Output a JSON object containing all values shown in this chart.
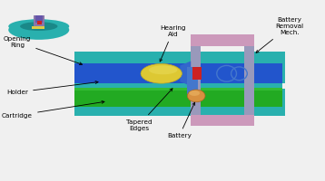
{
  "bg_color": "#f0f0f0",
  "labels": {
    "opening_ring": "Opening\nRing",
    "holder": "Holder",
    "cartridge": "Cartridge",
    "tapered_edges": "Tapered\nEdges",
    "battery": "Battery",
    "hearing_aid": "Hearing\nAid",
    "battery_removal": "Battery\nRemoval\nMech."
  },
  "colors": {
    "teal": "#29b0ae",
    "teal_dark": "#1a8888",
    "blue": "#2255cc",
    "blue_mid": "#3366cc",
    "blue_light": "#4477cc",
    "green": "#22aa22",
    "green_light": "#33bb33",
    "yellow": "#ddc833",
    "yellow_dark": "#bbaa22",
    "orange": "#d89040",
    "red": "#cc2222",
    "gray": "#9999bb",
    "gray_light": "#aaaacc",
    "pink": "#cc99bb",
    "purple_3d": "#8877aa",
    "purple_dark": "#6655aa",
    "white": "#ffffff"
  }
}
